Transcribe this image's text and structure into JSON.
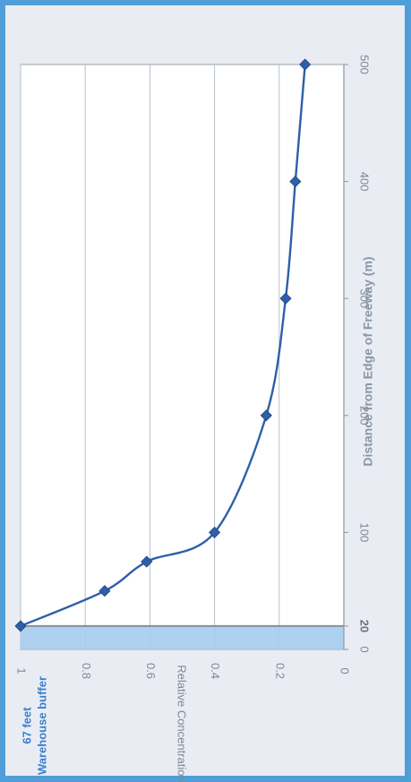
{
  "chart_data": {
    "type": "line",
    "orientation": "rotated 90 degrees clockwise",
    "xlabel": "Distance from Edge of Freeway (m)",
    "ylabel": "Relative Concentration",
    "xlim": [
      0,
      500
    ],
    "ylim": [
      0,
      1
    ],
    "x_ticks": [
      0,
      20,
      100,
      200,
      300,
      400,
      500
    ],
    "x_tick_labels": [
      "0",
      "20",
      "100",
      "200",
      "300",
      "400",
      "500"
    ],
    "y_ticks": [
      0,
      0.2,
      0.4,
      0.6,
      0.8,
      1
    ],
    "y_tick_labels": [
      "0",
      "0.2",
      "0.4",
      "0.6",
      "0.8",
      "1"
    ],
    "grid": true,
    "series": [
      {
        "x": [
          20,
          50,
          75,
          100,
          200,
          300,
          400,
          500
        ],
        "values": [
          1.0,
          0.74,
          0.61,
          0.4,
          0.24,
          0.18,
          0.15,
          0.12
        ]
      }
    ],
    "annotation": {
      "line1": "Warehouse buffer",
      "line2": "67 feet",
      "region_x": [
        0,
        20
      ]
    },
    "colors": {
      "series": "#2f5fa8",
      "buffer_fill": "#a6ccef",
      "buffer_line": "#8a8f96",
      "grid": "#b9c0c9",
      "background": "#e9edf3"
    }
  }
}
